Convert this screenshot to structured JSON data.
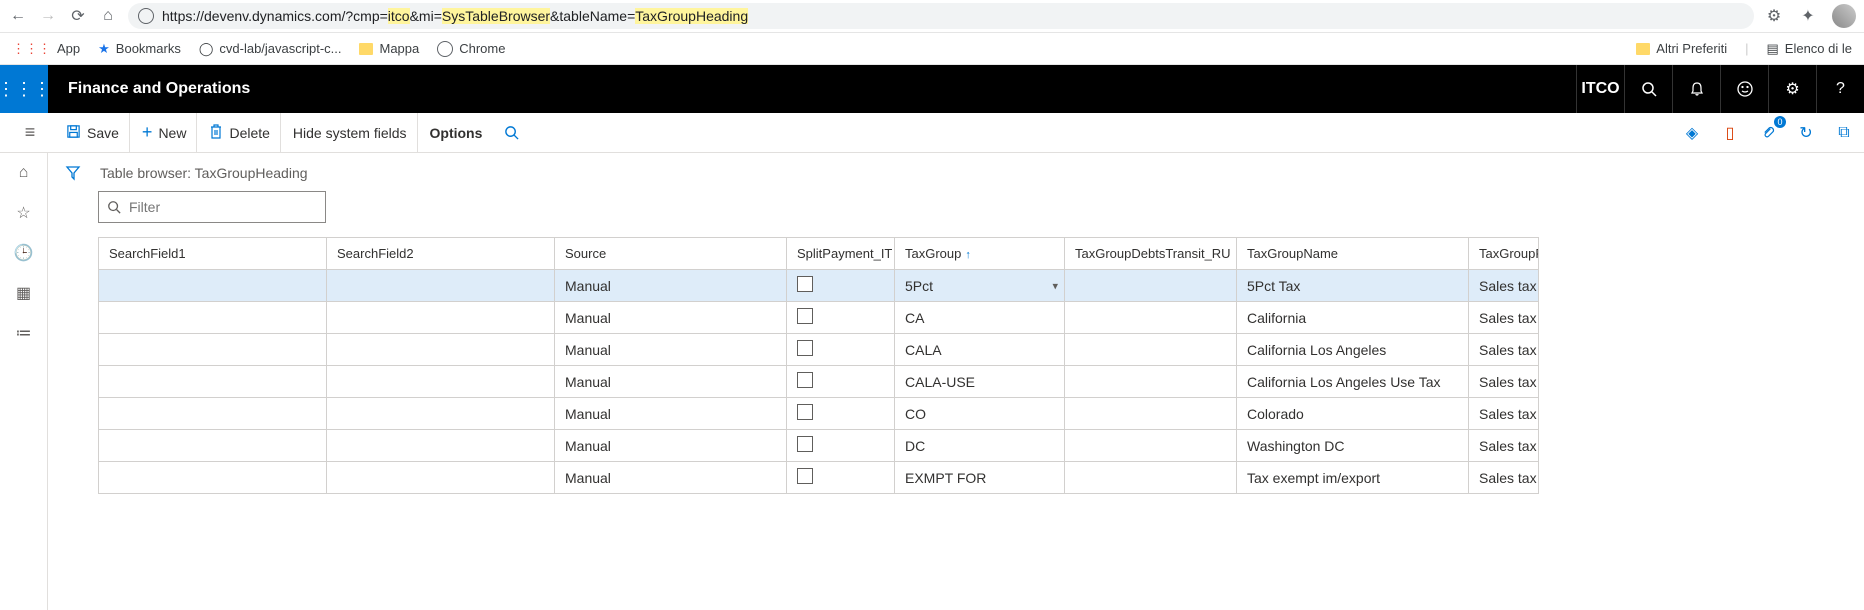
{
  "browser": {
    "url_pre": "https://devenv.dynamics.com/?cmp=",
    "url_p1": "itco",
    "url_mid1": "&mi=",
    "url_p2": "SysTableBrowser",
    "url_mid2": "&tableName=",
    "url_p3": "TaxGroupHeading",
    "bookmarks": {
      "app": "App",
      "bookmarks": "Bookmarks",
      "cvd": "cvd-lab/javascript-c...",
      "mappa": "Mappa",
      "chrome": "Chrome",
      "altri": "Altri Preferiti",
      "elenco": "Elenco di le"
    }
  },
  "app": {
    "title": "Finance and Operations",
    "company": "ITCO",
    "attach_count": "0"
  },
  "toolbar": {
    "save": "Save",
    "new": "New",
    "delete": "Delete",
    "hide": "Hide system fields",
    "options": "Options"
  },
  "page": {
    "title": "Table browser: TaxGroupHeading",
    "filter_placeholder": "Filter"
  },
  "columns": {
    "searchField1": "SearchField1",
    "searchField2": "SearchField2",
    "source": "Source",
    "splitPayment": "SplitPayment_IT",
    "taxGroup": "TaxGroup",
    "taxGroupDebts": "TaxGroupDebtsTransit_RU",
    "taxGroupName": "TaxGroupName",
    "taxGroupF": "TaxGroupF"
  },
  "rows": [
    {
      "source": "Manual",
      "taxGroup": "5Pct",
      "name": "5Pct Tax",
      "f": "Sales tax",
      "sel": true
    },
    {
      "source": "Manual",
      "taxGroup": "CA",
      "name": "California",
      "f": "Sales tax"
    },
    {
      "source": "Manual",
      "taxGroup": "CALA",
      "name": "California Los Angeles",
      "f": "Sales tax"
    },
    {
      "source": "Manual",
      "taxGroup": "CALA-USE",
      "name": "California  Los Angeles Use Tax",
      "f": "Sales tax"
    },
    {
      "source": "Manual",
      "taxGroup": "CO",
      "name": "Colorado",
      "f": "Sales tax"
    },
    {
      "source": "Manual",
      "taxGroup": "DC",
      "name": "Washington DC",
      "f": "Sales tax"
    },
    {
      "source": "Manual",
      "taxGroup": "EXMPT FOR",
      "name": "Tax exempt im/export",
      "f": "Sales tax"
    }
  ]
}
